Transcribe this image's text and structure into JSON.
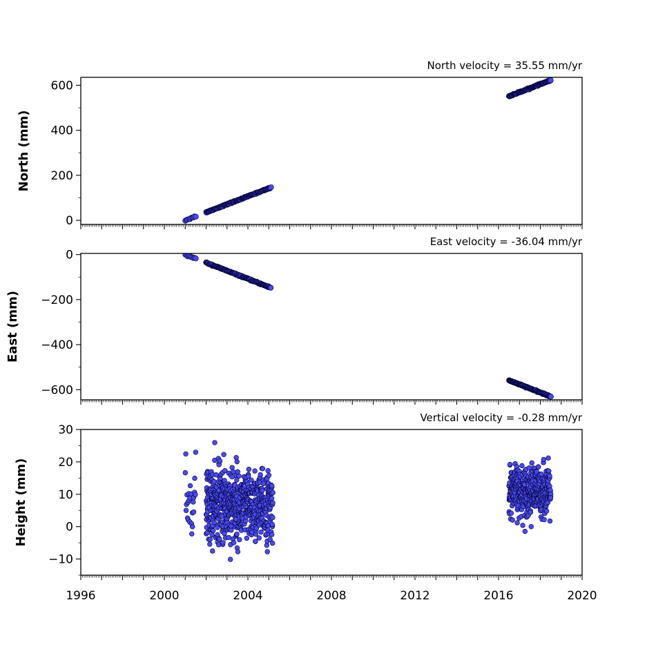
{
  "chart_data": [
    {
      "type": "scatter",
      "ylabel": "North (mm)",
      "annotation": "North velocity = 35.55 mm/yr",
      "velocity_mm_per_yr": 35.55,
      "xlim": [
        1996,
        2020
      ],
      "ylim": [
        -18,
        635
      ],
      "yticks": [
        0,
        200,
        400,
        600
      ],
      "yticklabels": [
        "0",
        "200",
        "400",
        "600"
      ],
      "xtick_labels_shown": false,
      "marker_color": "#4a4aee",
      "marker_edge": "#000033",
      "segments": [
        {
          "x_start": 2001.0,
          "x_end": 2001.5,
          "n": 10,
          "y_mode": "linear",
          "offset": 0,
          "scatter": 4
        },
        {
          "x_start": 2002.0,
          "x_end": 2005.1,
          "n": 160,
          "y_mode": "linear",
          "offset": 0,
          "scatter": 3
        },
        {
          "x_start": 2016.5,
          "x_end": 2018.5,
          "n": 130,
          "y_mode": "linear",
          "offset": 0,
          "scatter": 3
        }
      ]
    },
    {
      "type": "scatter",
      "ylabel": "East (mm)",
      "annotation": "East velocity = -36.04 mm/yr",
      "velocity_mm_per_yr": -36.04,
      "xlim": [
        1996,
        2020
      ],
      "ylim": [
        -645,
        5
      ],
      "yticks": [
        0,
        -200,
        -400,
        -600
      ],
      "yticklabels": [
        "0",
        "−200",
        "−400",
        "−600"
      ],
      "xtick_labels_shown": false,
      "marker_color": "#4a4aee",
      "marker_edge": "#000033",
      "segments": [
        {
          "x_start": 2001.0,
          "x_end": 2001.5,
          "n": 10,
          "y_mode": "linear",
          "offset": 0,
          "scatter": 4
        },
        {
          "x_start": 2002.0,
          "x_end": 2005.1,
          "n": 160,
          "y_mode": "linear",
          "offset": 0,
          "scatter": 3
        },
        {
          "x_start": 2016.5,
          "x_end": 2018.5,
          "n": 130,
          "y_mode": "linear",
          "offset": 0,
          "scatter": 3
        }
      ]
    },
    {
      "type": "scatter",
      "ylabel": "Height (mm)",
      "annotation": "Vertical velocity = -0.28 mm/yr",
      "velocity_mm_per_yr": -0.28,
      "xlim": [
        1996,
        2020
      ],
      "ylim": [
        -15,
        30
      ],
      "yticks": [
        -10,
        0,
        10,
        20,
        30
      ],
      "yticklabels": [
        "−10",
        "0",
        "10",
        "20",
        "30"
      ],
      "xticks": [
        1996,
        2000,
        2004,
        2008,
        2012,
        2016,
        2020
      ],
      "xticklabels": [
        "1996",
        "2000",
        "2004",
        "2008",
        "2012",
        "2016",
        "2020"
      ],
      "xtick_labels_shown": true,
      "marker_color": "#4a4aee",
      "marker_edge": "#000033",
      "segments": [
        {
          "x_start": 2001.0,
          "x_end": 2001.5,
          "n": 25,
          "y_mode": "noise",
          "center": 8,
          "spread": 8
        },
        {
          "x_start": 2002.0,
          "x_end": 2003.5,
          "n": 330,
          "y_mode": "noise",
          "center": 7,
          "spread": 8
        },
        {
          "x_start": 2003.5,
          "x_end": 2005.2,
          "n": 330,
          "y_mode": "noise",
          "center": 6,
          "spread": 7
        },
        {
          "x_start": 2016.5,
          "x_end": 2018.5,
          "n": 420,
          "y_mode": "noise",
          "center": 11,
          "spread": 5
        }
      ]
    }
  ]
}
